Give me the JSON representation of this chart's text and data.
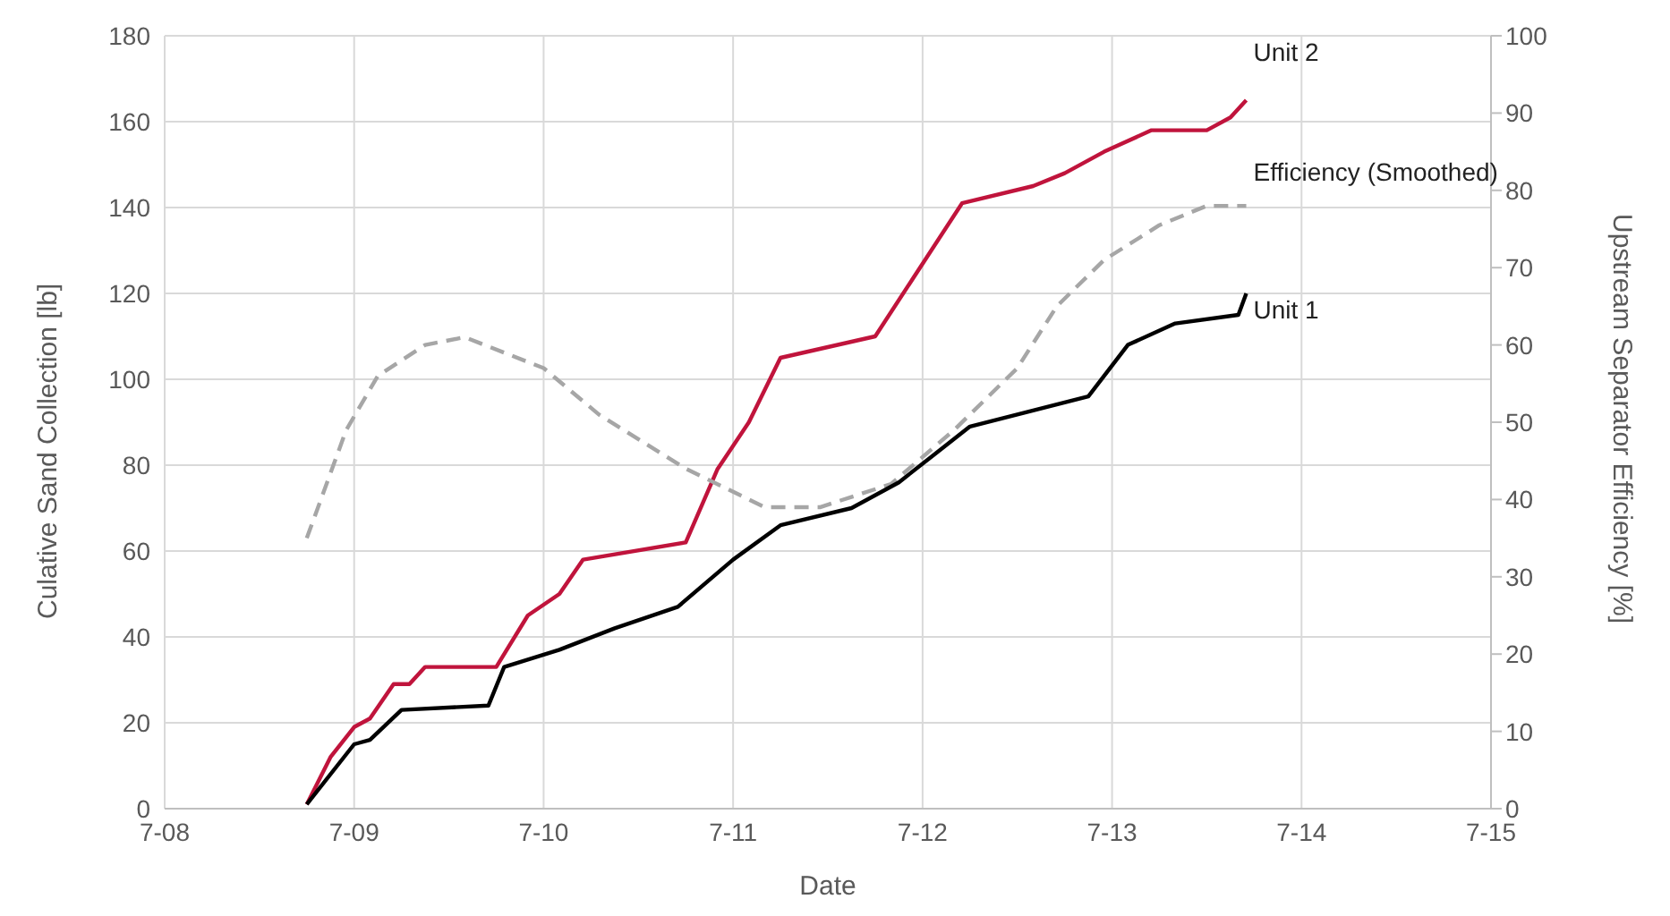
{
  "chart_data": {
    "type": "line",
    "xlabel": "Date",
    "ylabel": "Culative Sand Collection [lb]",
    "y2label": "Upstream Separator Efficiency [%]",
    "xlim": [
      "--07-08",
      "--07-15"
    ],
    "xticks": [
      {
        "value": "--07-08",
        "label": "7-08"
      },
      {
        "value": "--07-09",
        "label": "7-09"
      },
      {
        "value": "--07-10",
        "label": "7-10"
      },
      {
        "value": "--07-11",
        "label": "7-11"
      },
      {
        "value": "--07-12",
        "label": "7-12"
      },
      {
        "value": "--07-13",
        "label": "7-13"
      },
      {
        "value": "--07-14",
        "label": "7-14"
      },
      {
        "value": "--07-15",
        "label": "7-15"
      }
    ],
    "ylim": [
      0,
      180
    ],
    "yticks": [
      0,
      20,
      40,
      60,
      80,
      100,
      120,
      140,
      160,
      180
    ],
    "y2lim": [
      0,
      100
    ],
    "y2ticks": [
      0,
      10,
      20,
      30,
      40,
      50,
      60,
      70,
      80,
      90,
      100
    ],
    "grid": true,
    "legend": false,
    "marker": "none",
    "series": [
      {
        "name": "Unit 2",
        "color": "#c0143c",
        "line_style": "solid",
        "x": [
          "--07-08T18:00",
          "--07-08T21:00",
          "--07-09T00:00",
          "--07-09T02:00",
          "--07-09T05:00",
          "--07-09T07:00",
          "--07-09T09:00",
          "--07-09T18:00",
          "--07-09T22:00",
          "--07-10T02:00",
          "--07-10T05:00",
          "--07-10T18:00",
          "--07-10T22:00",
          "--07-11T02:00",
          "--07-11T06:00",
          "--07-11T18:00",
          "--07-12T05:00",
          "--07-12T14:00",
          "--07-12T18:00",
          "--07-12T23:00",
          "--07-13T05:00",
          "--07-13T12:00",
          "--07-13T15:00",
          "--07-13T17:00"
        ],
        "values": [
          1,
          12,
          19,
          21,
          29,
          29,
          33,
          33,
          45,
          50,
          58,
          62,
          79,
          90,
          105,
          110,
          141,
          145,
          148,
          153,
          158,
          158,
          161,
          165
        ]
      },
      {
        "name": "Efficiency (Smoothed)",
        "color": "#a6a6a6",
        "line_style": "dashed",
        "axis": "y2",
        "x": [
          "--07-08T18:00",
          "--07-08T23:00",
          "--07-09T03:00",
          "--07-09T09:00",
          "--07-09T14:00",
          "--07-10T00:00",
          "--07-10T07:00",
          "--07-10T18:00",
          "--07-11T04:00",
          "--07-11T11:00",
          "--07-11T20:00",
          "--07-12T04:00",
          "--07-12T12:00",
          "--07-12T17:00",
          "--07-12T23:00",
          "--07-13T06:00",
          "--07-13T12:00",
          "--07-13T17:00"
        ],
        "values": [
          35,
          49,
          56,
          60,
          61,
          57,
          51,
          44,
          39,
          39,
          42,
          49,
          57,
          65,
          71,
          75.5,
          78,
          78
        ]
      },
      {
        "name": "Unit 1",
        "color": "#000000",
        "line_style": "solid",
        "x": [
          "--07-08T18:00",
          "--07-09T00:00",
          "--07-09T02:00",
          "--07-09T06:00",
          "--07-09T17:00",
          "--07-09T19:00",
          "--07-10T02:00",
          "--07-10T09:00",
          "--07-10T17:00",
          "--07-11T00:00",
          "--07-11T06:00",
          "--07-11T15:00",
          "--07-11T21:00",
          "--07-12T06:00",
          "--07-12T21:00",
          "--07-13T02:00",
          "--07-13T08:00",
          "--07-13T16:00",
          "--07-13T17:00"
        ],
        "values": [
          1,
          15,
          16,
          23,
          24,
          33,
          37,
          42,
          47,
          58,
          66,
          70,
          76,
          89,
          96,
          108,
          113,
          115,
          120
        ]
      }
    ]
  }
}
